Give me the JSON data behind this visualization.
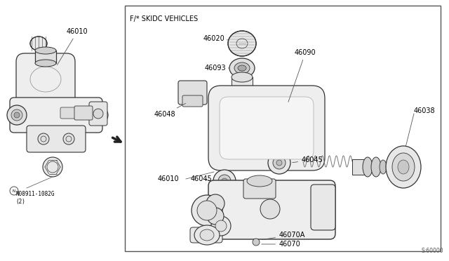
{
  "bg_color": "#ffffff",
  "line_color": "#333333",
  "text_color": "#000000",
  "diagram_code": "S:60000",
  "box_label": "F/* SKIDC VEHICLES",
  "note_label": "N08911-1082G\n(2)",
  "label_fs": 7.0,
  "lw": 0.8
}
